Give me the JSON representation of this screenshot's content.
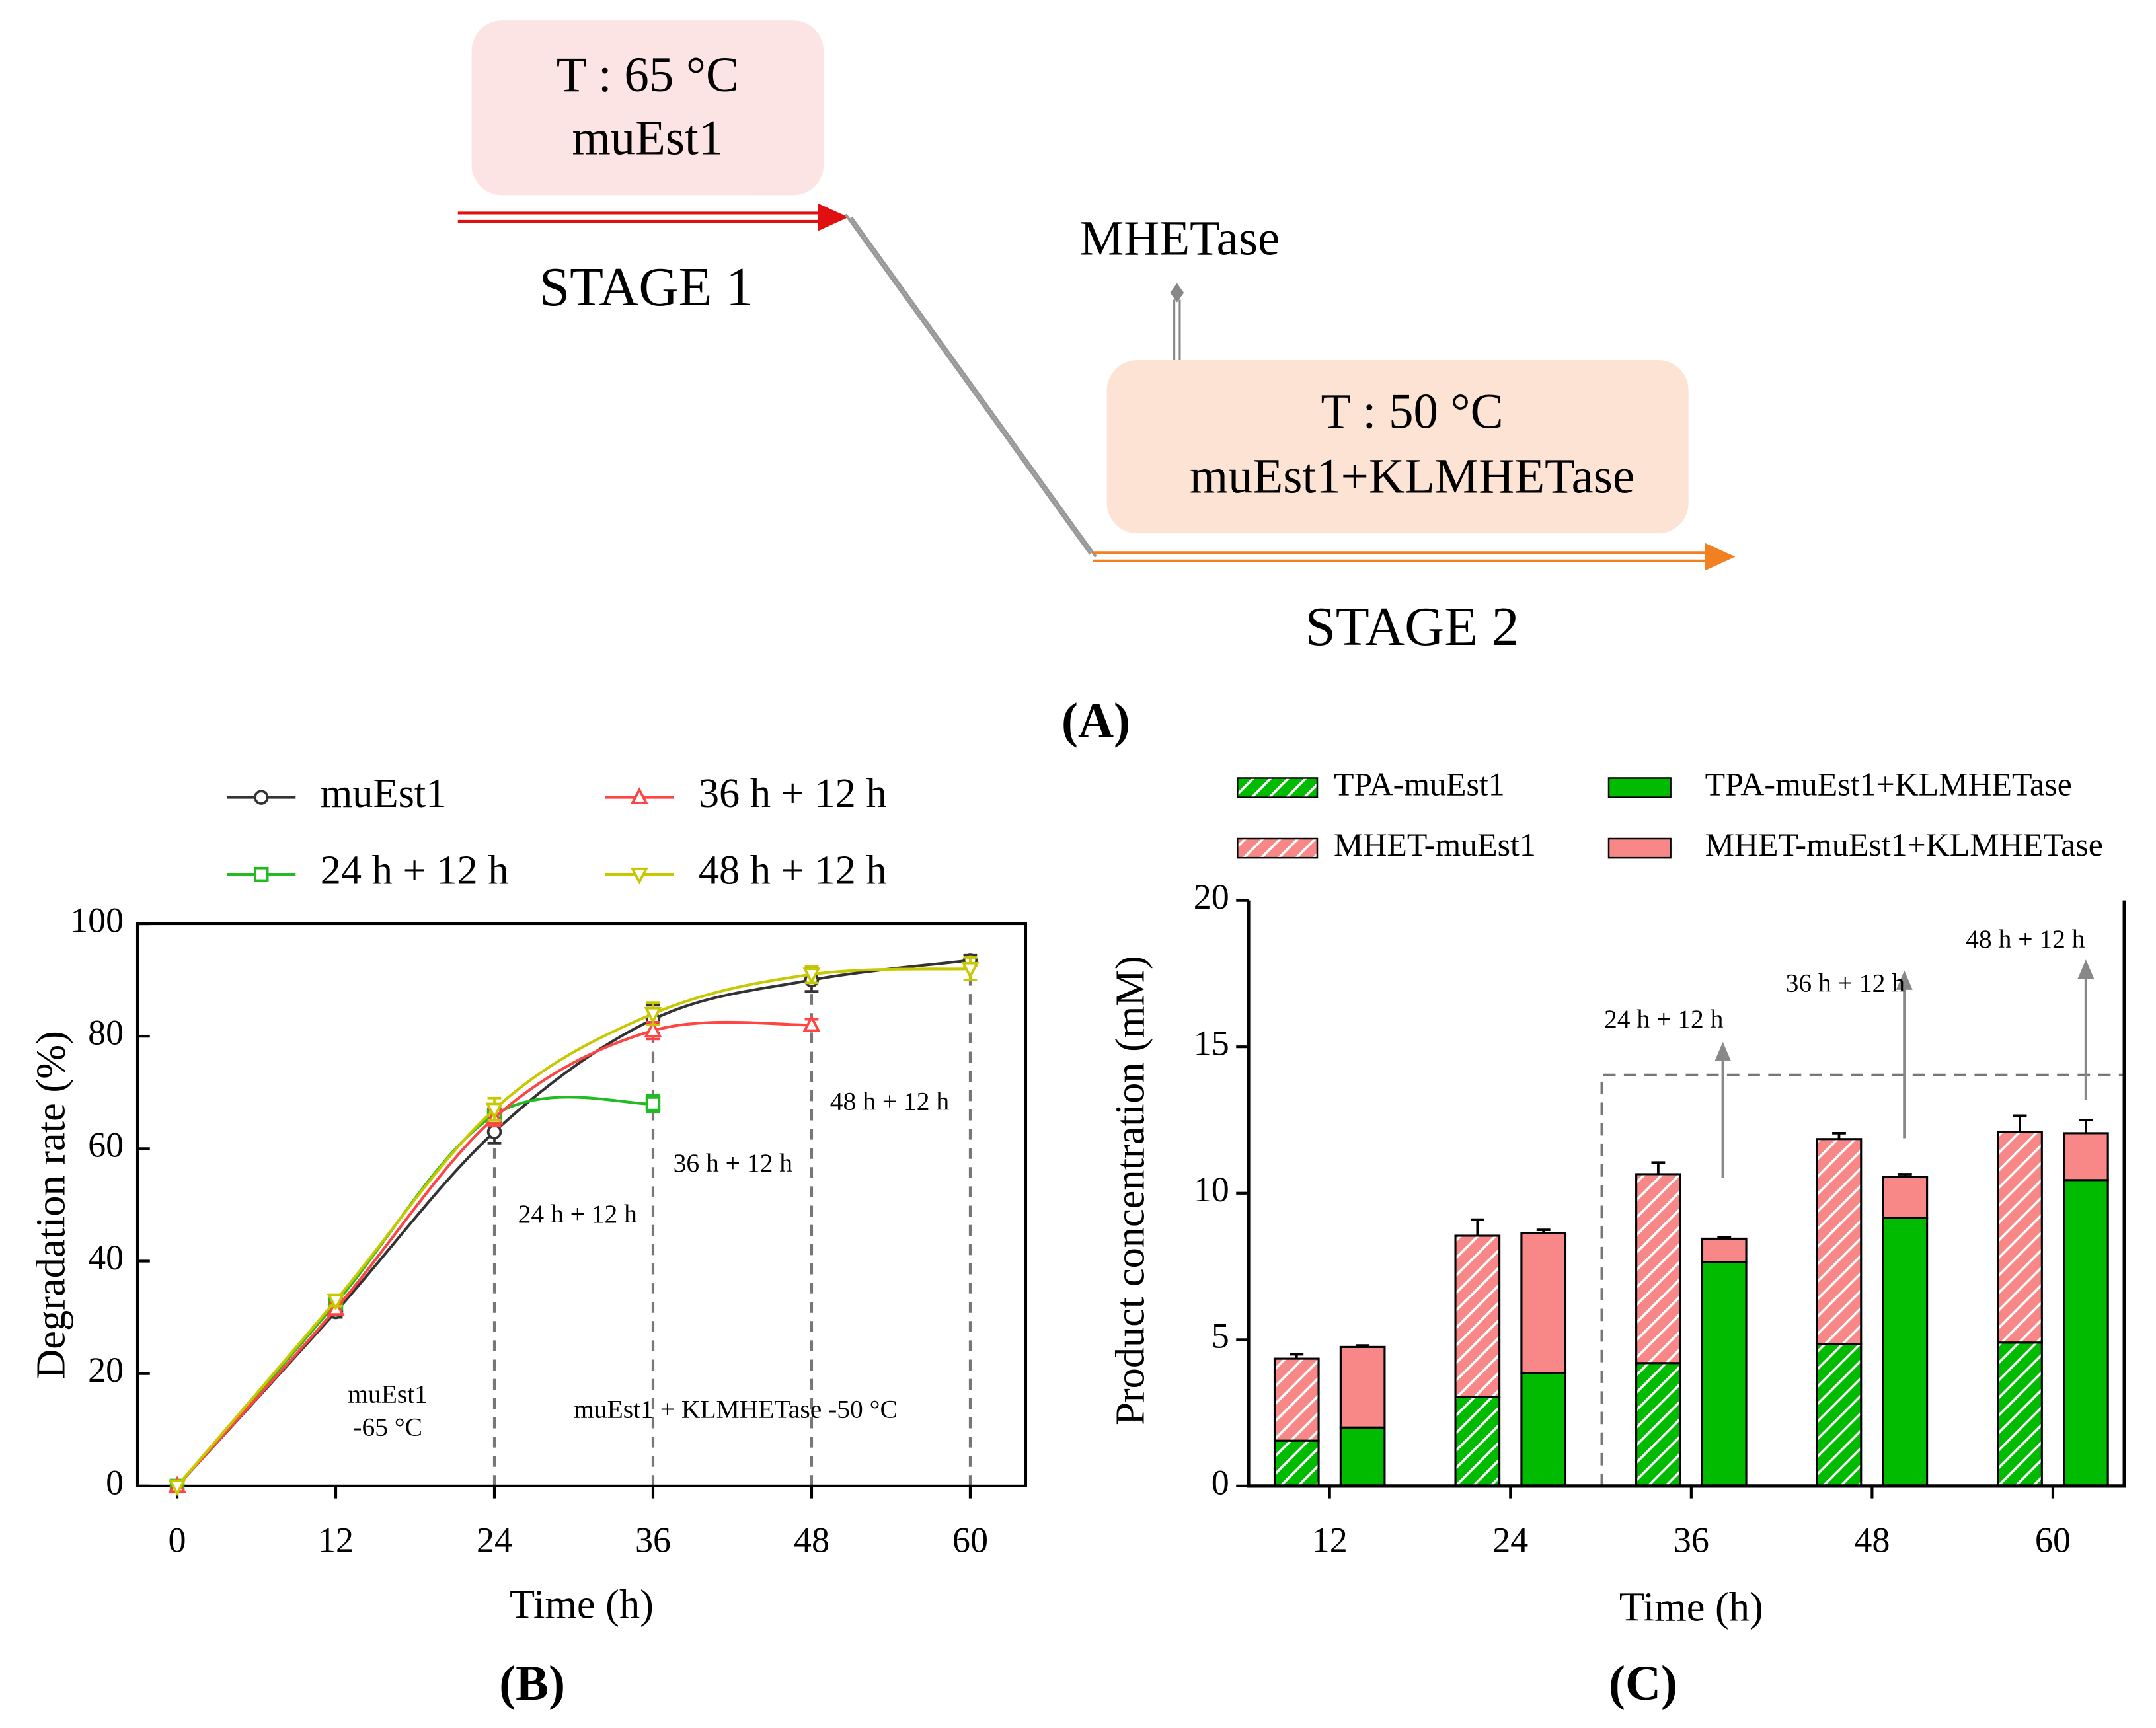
{
  "diagram": {
    "stage1_temp": "T : 65 °C",
    "stage1_enzyme": "muEst1",
    "stage1_label": "STAGE 1",
    "additive": "MHETase",
    "stage2_temp": "T : 50 °C",
    "stage2_enzyme": "muEst1+KLMHETase",
    "stage2_label": "STAGE 2",
    "panel_label": "(A)"
  },
  "chart_data": [
    {
      "type": "line",
      "panel_label": "(B)",
      "x_label": "Time (h)",
      "y_label": "Degradation rate (%)",
      "x": [
        0,
        12,
        24,
        36,
        48,
        60
      ],
      "xlim": [
        -3,
        64.2
      ],
      "xticks": [
        0,
        12,
        24,
        36,
        48,
        60
      ],
      "ylim": [
        0,
        100
      ],
      "yticks": [
        0,
        20,
        40,
        60,
        80,
        100
      ],
      "series": [
        {
          "name": "muEst1",
          "color": "#333333",
          "marker": "circle",
          "values": [
            0,
            31,
            63,
            83,
            90,
            93.5
          ],
          "errors": [
            0,
            1,
            2,
            2.5,
            2,
            1
          ]
        },
        {
          "name": "24 h + 12 h",
          "color": "#22bb22",
          "marker": "square",
          "values": [
            0,
            32.5,
            66,
            68,
            null,
            null
          ],
          "errors": [
            0,
            1,
            1.5,
            1.5,
            null,
            null
          ]
        },
        {
          "name": "36 h + 12 h",
          "color": "#ff4444",
          "marker": "triangle-up",
          "values": [
            0,
            31.5,
            65.5,
            81,
            82,
            null
          ],
          "errors": [
            0,
            1,
            1.5,
            1.5,
            1,
            null
          ]
        },
        {
          "name": "48 h + 12 h",
          "color": "#c8c800",
          "marker": "triangle-down",
          "values": [
            0,
            33,
            67,
            84,
            91,
            92
          ],
          "errors": [
            0,
            1,
            2,
            2,
            1.5,
            2
          ]
        }
      ],
      "annotations": [
        {
          "text": "muEst1",
          "color": "#000000"
        },
        {
          "text": "-65 °C",
          "color": "#000000"
        },
        {
          "text": "muEst1 + KLMHETase -50 °C",
          "color": "#000000"
        },
        {
          "text": "24 h + 12 h",
          "color": "#3a9a2a"
        },
        {
          "text": "36 h + 12 h",
          "color": "#e02020"
        },
        {
          "text": "48 h + 12 h",
          "color": "#8a6a00"
        }
      ]
    },
    {
      "type": "bar",
      "panel_label": "(C)",
      "x_label": "Time (h)",
      "y_label": "Product concentration (mM)",
      "categories": [
        "12",
        "24",
        "36",
        "48",
        "60"
      ],
      "ylim": [
        0,
        20
      ],
      "yticks": [
        0,
        5,
        10,
        15,
        20
      ],
      "series": [
        {
          "name": "TPA-muEst1",
          "color": "#00bb00",
          "hatch": true,
          "values": [
            1.55,
            3.05,
            4.2,
            4.85,
            4.9
          ],
          "errors": [
            0.1,
            0.5,
            0.15,
            0.1,
            1.35
          ]
        },
        {
          "name": "MHET-muEst1",
          "color": "#f88888",
          "hatch": true,
          "values": [
            2.8,
            5.5,
            6.45,
            7.0,
            7.2
          ],
          "errors": [
            0.15,
            0.55,
            0.4,
            0.2,
            0.55
          ]
        },
        {
          "name": "TPA-muEst1+KLMHETase",
          "color": "#00bb00",
          "hatch": false,
          "values": [
            2.0,
            3.85,
            7.65,
            9.15,
            10.45
          ],
          "errors": [
            0.1,
            0.2,
            0.25,
            0.15,
            0.05
          ]
        },
        {
          "name": "MHET-muEst1+KLMHETase",
          "color": "#f88888",
          "hatch": false,
          "values": [
            2.75,
            4.8,
            0.8,
            1.4,
            1.6
          ],
          "errors": [
            0.05,
            0.1,
            0.05,
            0.1,
            0.45
          ]
        }
      ],
      "annotations": [
        {
          "text": "24 h + 12 h",
          "color": "#3a9a2a"
        },
        {
          "text": "36 h + 12 h",
          "color": "#e02020"
        },
        {
          "text": "48 h + 12 h",
          "color": "#8a6a00"
        }
      ]
    }
  ]
}
